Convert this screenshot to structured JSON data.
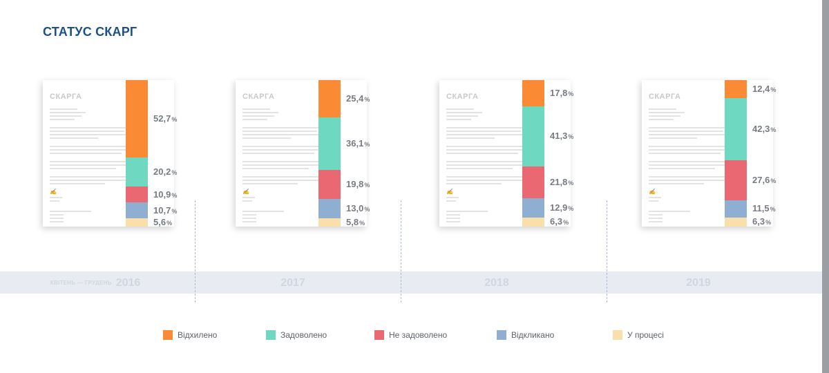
{
  "title": "СТАТУС СКАРГ",
  "document_label": "СКАРГА",
  "colors": {
    "rejected": "#fb8a35",
    "satisfied": "#6fd8c1",
    "not_satisfied": "#e96871",
    "withdrawn": "#8fafd2",
    "in_process": "#f8dfab"
  },
  "chart_data": {
    "type": "bar",
    "stacked": true,
    "normalized": "percent",
    "categories": [
      "КВІТЕНЬ — ГРУДЕНЬ 2016",
      "2017",
      "2018",
      "2019"
    ],
    "category_prefix": [
      "КВІТЕНЬ — ГРУДЕНЬ",
      "",
      "",
      ""
    ],
    "category_year": [
      "2016",
      "2017",
      "2018",
      "2019"
    ],
    "series": [
      {
        "name": "Відхилено",
        "values": [
          52.7,
          25.4,
          17.8,
          12.4
        ]
      },
      {
        "name": "Задоволено",
        "values": [
          20.2,
          36.1,
          41.3,
          42.3
        ]
      },
      {
        "name": "Не задоволено",
        "values": [
          10.9,
          19.8,
          21.8,
          27.6
        ]
      },
      {
        "name": "Відкликано",
        "values": [
          10.7,
          13.0,
          12.9,
          11.5
        ]
      },
      {
        "name": "У процесі",
        "values": [
          5.6,
          5.8,
          6.3,
          6.3
        ]
      }
    ],
    "value_labels": [
      [
        "52,7",
        "20,2",
        "10,9",
        "10,7",
        "5,6"
      ],
      [
        "25,4",
        "36,1",
        "19,8",
        "13,0",
        "5,8"
      ],
      [
        "17,8",
        "41,3",
        "21,8",
        "12,9",
        "6,3"
      ],
      [
        "12,4",
        "42,3",
        "27,6",
        "11,5",
        "6,3"
      ]
    ],
    "unit": "%",
    "legend_position": "bottom"
  }
}
